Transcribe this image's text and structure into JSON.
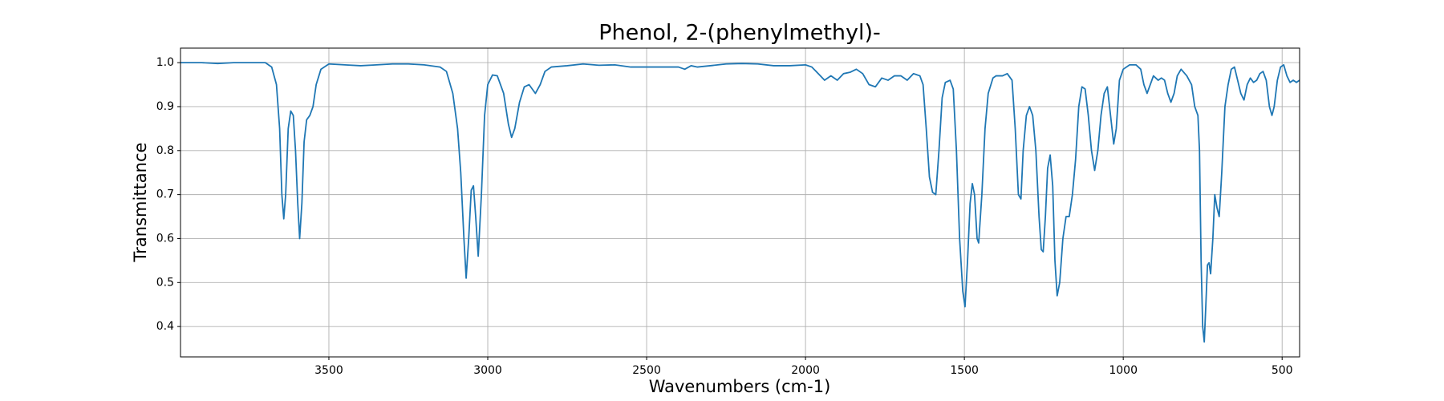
{
  "chart_data": {
    "type": "line",
    "title": "Phenol, 2-(phenylmethyl)-",
    "xlabel": "Wavenumbers (cm-1)",
    "ylabel": "Transmittance",
    "color": "#1f77b4",
    "grid": true,
    "xlim": [
      3967,
      445
    ],
    "ylim": [
      0.331,
      1.033
    ],
    "xticks": [
      3500,
      3000,
      2500,
      2000,
      1500,
      1000,
      500
    ],
    "yticks": [
      0.4,
      0.5,
      0.6,
      0.7,
      0.8,
      0.9,
      {
        "value": 1.0,
        "label": "1.0"
      }
    ],
    "x": [
      3967,
      3900,
      3850,
      3800,
      3750,
      3700,
      3680,
      3665,
      3655,
      3648,
      3642,
      3636,
      3628,
      3620,
      3612,
      3605,
      3598,
      3592,
      3585,
      3578,
      3570,
      3560,
      3550,
      3540,
      3525,
      3500,
      3450,
      3400,
      3350,
      3300,
      3250,
      3200,
      3150,
      3130,
      3110,
      3095,
      3085,
      3075,
      3068,
      3060,
      3052,
      3045,
      3038,
      3030,
      3020,
      3010,
      3000,
      2985,
      2970,
      2950,
      2935,
      2925,
      2915,
      2900,
      2885,
      2870,
      2850,
      2835,
      2820,
      2800,
      2750,
      2700,
      2650,
      2600,
      2550,
      2500,
      2450,
      2400,
      2380,
      2360,
      2340,
      2300,
      2250,
      2200,
      2150,
      2100,
      2050,
      2000,
      1980,
      1960,
      1940,
      1920,
      1900,
      1880,
      1860,
      1840,
      1820,
      1800,
      1780,
      1760,
      1740,
      1720,
      1700,
      1680,
      1660,
      1640,
      1630,
      1620,
      1610,
      1600,
      1590,
      1580,
      1570,
      1560,
      1545,
      1535,
      1525,
      1515,
      1505,
      1498,
      1490,
      1482,
      1475,
      1468,
      1460,
      1455,
      1445,
      1435,
      1425,
      1410,
      1400,
      1380,
      1365,
      1350,
      1340,
      1330,
      1322,
      1315,
      1305,
      1295,
      1285,
      1275,
      1265,
      1258,
      1252,
      1245,
      1238,
      1230,
      1222,
      1215,
      1208,
      1200,
      1190,
      1180,
      1170,
      1160,
      1150,
      1140,
      1130,
      1120,
      1110,
      1100,
      1090,
      1080,
      1070,
      1060,
      1050,
      1040,
      1030,
      1022,
      1012,
      1000,
      980,
      960,
      945,
      935,
      925,
      915,
      905,
      890,
      880,
      870,
      860,
      850,
      840,
      830,
      818,
      800,
      785,
      775,
      765,
      760,
      755,
      750,
      745,
      740,
      735,
      730,
      725,
      718,
      712,
      705,
      698,
      690,
      680,
      670,
      660,
      650,
      640,
      630,
      620,
      610,
      600,
      590,
      580,
      570,
      560,
      550,
      540,
      532,
      525,
      515,
      505,
      495,
      485,
      475,
      465,
      455,
      445
    ],
    "values": [
      1.0,
      1.0,
      0.998,
      1.0,
      1.0,
      1.0,
      0.99,
      0.95,
      0.85,
      0.7,
      0.645,
      0.7,
      0.85,
      0.89,
      0.88,
      0.8,
      0.68,
      0.6,
      0.68,
      0.82,
      0.87,
      0.88,
      0.9,
      0.95,
      0.985,
      0.997,
      0.995,
      0.993,
      0.995,
      0.997,
      0.997,
      0.995,
      0.99,
      0.98,
      0.93,
      0.85,
      0.75,
      0.6,
      0.51,
      0.6,
      0.71,
      0.72,
      0.65,
      0.56,
      0.7,
      0.88,
      0.95,
      0.972,
      0.97,
      0.93,
      0.86,
      0.83,
      0.85,
      0.91,
      0.945,
      0.95,
      0.93,
      0.95,
      0.98,
      0.99,
      0.993,
      0.997,
      0.994,
      0.995,
      0.99,
      0.99,
      0.99,
      0.99,
      0.985,
      0.993,
      0.99,
      0.993,
      0.997,
      0.998,
      0.997,
      0.993,
      0.993,
      0.995,
      0.99,
      0.975,
      0.96,
      0.97,
      0.96,
      0.975,
      0.978,
      0.985,
      0.975,
      0.95,
      0.945,
      0.965,
      0.96,
      0.97,
      0.97,
      0.96,
      0.975,
      0.97,
      0.95,
      0.85,
      0.74,
      0.705,
      0.7,
      0.8,
      0.92,
      0.955,
      0.96,
      0.94,
      0.8,
      0.6,
      0.48,
      0.445,
      0.55,
      0.68,
      0.725,
      0.7,
      0.6,
      0.59,
      0.7,
      0.85,
      0.93,
      0.965,
      0.97,
      0.97,
      0.975,
      0.96,
      0.85,
      0.7,
      0.69,
      0.8,
      0.88,
      0.9,
      0.88,
      0.8,
      0.65,
      0.575,
      0.57,
      0.65,
      0.76,
      0.79,
      0.72,
      0.55,
      0.47,
      0.5,
      0.6,
      0.65,
      0.65,
      0.7,
      0.78,
      0.9,
      0.945,
      0.94,
      0.88,
      0.8,
      0.755,
      0.8,
      0.88,
      0.93,
      0.945,
      0.88,
      0.815,
      0.85,
      0.96,
      0.985,
      0.995,
      0.995,
      0.985,
      0.95,
      0.93,
      0.95,
      0.97,
      0.96,
      0.965,
      0.96,
      0.93,
      0.91,
      0.93,
      0.97,
      0.985,
      0.97,
      0.95,
      0.9,
      0.88,
      0.8,
      0.55,
      0.4,
      0.365,
      0.45,
      0.54,
      0.545,
      0.52,
      0.6,
      0.7,
      0.67,
      0.65,
      0.75,
      0.9,
      0.95,
      0.985,
      0.99,
      0.96,
      0.93,
      0.915,
      0.95,
      0.965,
      0.955,
      0.96,
      0.975,
      0.98,
      0.96,
      0.9,
      0.88,
      0.9,
      0.96,
      0.99,
      0.995,
      0.97,
      0.955,
      0.96,
      0.955,
      0.96
    ]
  }
}
